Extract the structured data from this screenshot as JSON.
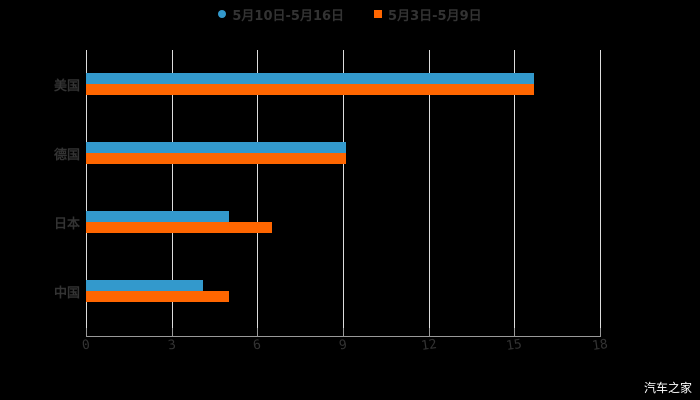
{
  "chart_data": {
    "type": "bar",
    "orientation": "horizontal",
    "categories": [
      "美国",
      "德国",
      "日本",
      "中国"
    ],
    "series": [
      {
        "name": "5月10日-5月16日",
        "color": "#3399CC",
        "values": [
          15.7,
          9.1,
          5.0,
          4.1
        ]
      },
      {
        "name": "5月3日-5月9日",
        "color": "#FF6600",
        "values": [
          15.7,
          9.1,
          6.5,
          5.0
        ]
      }
    ],
    "xlim": [
      0,
      18
    ],
    "xticks": [
      "0",
      "3",
      "6",
      "9",
      "12",
      "15",
      "18"
    ],
    "grid": true,
    "legend_position": "top"
  },
  "legend": {
    "s1": "5月10日-5月16日",
    "s2": "5月3日-5月9日"
  },
  "watermark": "汽车之家"
}
